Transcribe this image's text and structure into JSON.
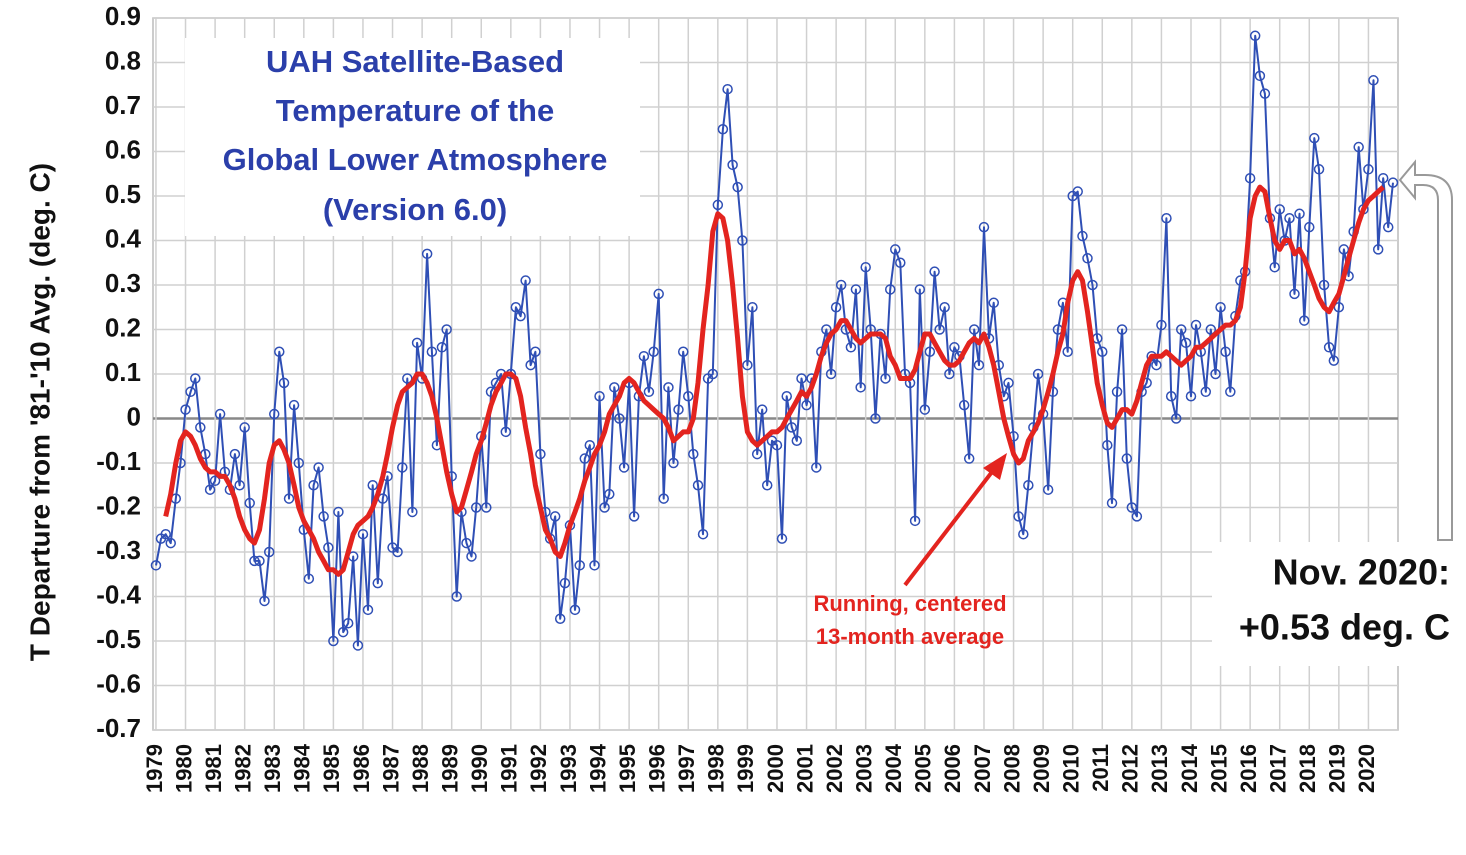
{
  "chart_data": {
    "type": "line",
    "title": [
      "UAH Satellite-Based",
      "Temperature of the",
      "Global Lower Atmosphere",
      "(Version 6.0)"
    ],
    "y_label": "T Departure from '81-'10 Avg. (deg. C)",
    "annotation": [
      "Running, centered",
      "13-month average"
    ],
    "callout": [
      "Nov. 2020:",
      "+0.53 deg. C"
    ],
    "ylim": [
      -0.7,
      0.9
    ],
    "yticks": [
      -0.7,
      -0.6,
      -0.5,
      -0.4,
      -0.3,
      -0.2,
      -0.1,
      0,
      0.1,
      0.2,
      0.3,
      0.4,
      0.5,
      0.6,
      0.7,
      0.8,
      0.9
    ],
    "xlim": [
      1978.9,
      2021.0
    ],
    "xticks": [
      1979,
      1980,
      1981,
      1982,
      1983,
      1984,
      1985,
      1986,
      1987,
      1988,
      1989,
      1990,
      1991,
      1992,
      1993,
      1994,
      1995,
      1996,
      1997,
      1998,
      1999,
      2000,
      2001,
      2002,
      2003,
      2004,
      2005,
      2006,
      2007,
      2008,
      2009,
      2010,
      2011,
      2012,
      2013,
      2014,
      2015,
      2016,
      2017,
      2018,
      2019,
      2020
    ],
    "grid": true,
    "x": [
      1979,
      1979.17,
      1979.33,
      1979.5,
      1979.67,
      1979.83,
      1980,
      1980.17,
      1980.33,
      1980.5,
      1980.67,
      1980.83,
      1981,
      1981.17,
      1981.33,
      1981.5,
      1981.67,
      1981.83,
      1982,
      1982.17,
      1982.33,
      1982.5,
      1982.67,
      1982.83,
      1983,
      1983.17,
      1983.33,
      1983.5,
      1983.67,
      1983.83,
      1984,
      1984.17,
      1984.33,
      1984.5,
      1984.67,
      1984.83,
      1985,
      1985.17,
      1985.33,
      1985.5,
      1985.67,
      1985.83,
      1986,
      1986.17,
      1986.33,
      1986.5,
      1986.67,
      1986.83,
      1987,
      1987.17,
      1987.33,
      1987.5,
      1987.67,
      1987.83,
      1988,
      1988.17,
      1988.33,
      1988.5,
      1988.67,
      1988.83,
      1989,
      1989.17,
      1989.33,
      1989.5,
      1989.67,
      1989.83,
      1990,
      1990.17,
      1990.33,
      1990.5,
      1990.67,
      1990.83,
      1991,
      1991.17,
      1991.33,
      1991.5,
      1991.67,
      1991.83,
      1992,
      1992.17,
      1992.33,
      1992.5,
      1992.67,
      1992.83,
      1993,
      1993.17,
      1993.33,
      1993.5,
      1993.67,
      1993.83,
      1994,
      1994.17,
      1994.33,
      1994.5,
      1994.67,
      1994.83,
      1995,
      1995.17,
      1995.33,
      1995.5,
      1995.67,
      1995.83,
      1996,
      1996.17,
      1996.33,
      1996.5,
      1996.67,
      1996.83,
      1997,
      1997.17,
      1997.33,
      1997.5,
      1997.67,
      1997.83,
      1998,
      1998.17,
      1998.33,
      1998.5,
      1998.67,
      1998.83,
      1999,
      1999.17,
      1999.33,
      1999.5,
      1999.67,
      1999.83,
      2000,
      2000.17,
      2000.33,
      2000.5,
      2000.67,
      2000.83,
      2001,
      2001.17,
      2001.33,
      2001.5,
      2001.67,
      2001.83,
      2002,
      2002.17,
      2002.33,
      2002.5,
      2002.67,
      2002.83,
      2003,
      2003.17,
      2003.33,
      2003.5,
      2003.67,
      2003.83,
      2004,
      2004.17,
      2004.33,
      2004.5,
      2004.67,
      2004.83,
      2005,
      2005.17,
      2005.33,
      2005.5,
      2005.67,
      2005.83,
      2006,
      2006.17,
      2006.33,
      2006.5,
      2006.67,
      2006.83,
      2007,
      2007.17,
      2007.33,
      2007.5,
      2007.67,
      2007.83,
      2008,
      2008.17,
      2008.33,
      2008.5,
      2008.67,
      2008.83,
      2009,
      2009.17,
      2009.33,
      2009.5,
      2009.67,
      2009.83,
      2010,
      2010.17,
      2010.33,
      2010.5,
      2010.67,
      2010.83,
      2011,
      2011.17,
      2011.33,
      2011.5,
      2011.67,
      2011.83,
      2012,
      2012.17,
      2012.33,
      2012.5,
      2012.67,
      2012.83,
      2013,
      2013.17,
      2013.33,
      2013.5,
      2013.67,
      2013.83,
      2014,
      2014.17,
      2014.33,
      2014.5,
      2014.67,
      2014.83,
      2015,
      2015.17,
      2015.33,
      2015.5,
      2015.67,
      2015.83,
      2016,
      2016.17,
      2016.33,
      2016.5,
      2016.67,
      2016.83,
      2017,
      2017.17,
      2017.33,
      2017.5,
      2017.67,
      2017.83,
      2018,
      2018.17,
      2018.33,
      2018.5,
      2018.67,
      2018.83,
      2019,
      2019.17,
      2019.33,
      2019.5,
      2019.67,
      2019.83,
      2020,
      2020.17,
      2020.33,
      2020.5,
      2020.67,
      2020.83
    ],
    "series": [
      {
        "color": "#2f4fb5",
        "markers": true,
        "width": 2,
        "values": [
          -0.33,
          -0.27,
          -0.26,
          -0.28,
          -0.18,
          -0.1,
          0.02,
          0.06,
          0.09,
          -0.02,
          -0.08,
          -0.16,
          -0.14,
          0.01,
          -0.12,
          -0.16,
          -0.08,
          -0.15,
          -0.02,
          -0.19,
          -0.32,
          -0.32,
          -0.41,
          -0.3,
          0.01,
          0.15,
          0.08,
          -0.18,
          0.03,
          -0.1,
          -0.25,
          -0.36,
          -0.15,
          -0.11,
          -0.22,
          -0.29,
          -0.5,
          -0.21,
          -0.48,
          -0.46,
          -0.31,
          -0.51,
          -0.26,
          -0.43,
          -0.15,
          -0.37,
          -0.18,
          -0.13,
          -0.29,
          -0.3,
          -0.11,
          0.09,
          -0.21,
          0.17,
          0.09,
          0.37,
          0.15,
          -0.06,
          0.16,
          0.2,
          -0.13,
          -0.4,
          -0.21,
          -0.28,
          -0.31,
          -0.2,
          -0.04,
          -0.2,
          0.06,
          0.08,
          0.1,
          -0.03,
          0.1,
          0.25,
          0.23,
          0.31,
          0.12,
          0.15,
          -0.08,
          -0.21,
          -0.27,
          -0.22,
          -0.45,
          -0.37,
          -0.24,
          -0.43,
          -0.33,
          -0.09,
          -0.06,
          -0.33,
          0.05,
          -0.2,
          -0.17,
          0.07,
          0.0,
          -0.11,
          0.08,
          -0.22,
          0.05,
          0.14,
          0.06,
          0.15,
          0.28,
          -0.18,
          0.07,
          -0.1,
          0.02,
          0.15,
          0.05,
          -0.08,
          -0.15,
          -0.26,
          0.09,
          0.1,
          0.48,
          0.65,
          0.74,
          0.57,
          0.52,
          0.4,
          0.12,
          0.25,
          -0.08,
          0.02,
          -0.15,
          -0.05,
          -0.06,
          -0.27,
          0.05,
          -0.02,
          -0.05,
          0.09,
          0.03,
          0.09,
          -0.11,
          0.15,
          0.2,
          0.1,
          0.25,
          0.3,
          0.2,
          0.16,
          0.29,
          0.07,
          0.34,
          0.2,
          0.0,
          0.19,
          0.09,
          0.29,
          0.38,
          0.35,
          0.1,
          0.08,
          -0.23,
          0.29,
          0.02,
          0.15,
          0.33,
          0.2,
          0.25,
          0.1,
          0.16,
          0.14,
          0.03,
          -0.09,
          0.2,
          0.12,
          0.43,
          0.18,
          0.26,
          0.12,
          0.05,
          0.08,
          -0.04,
          -0.22,
          -0.26,
          -0.15,
          -0.02,
          0.1,
          0.01,
          -0.16,
          0.06,
          0.2,
          0.26,
          0.15,
          0.5,
          0.51,
          0.41,
          0.36,
          0.3,
          0.18,
          0.15,
          -0.06,
          -0.19,
          0.06,
          0.2,
          -0.09,
          -0.2,
          -0.22,
          0.06,
          0.08,
          0.14,
          0.12,
          0.21,
          0.45,
          0.05,
          0.0,
          0.2,
          0.17,
          0.05,
          0.21,
          0.15,
          0.06,
          0.2,
          0.1,
          0.25,
          0.15,
          0.06,
          0.23,
          0.31,
          0.33,
          0.54,
          0.86,
          0.77,
          0.73,
          0.45,
          0.34,
          0.47,
          0.4,
          0.45,
          0.28,
          0.46,
          0.22,
          0.43,
          0.63,
          0.56,
          0.3,
          0.16,
          0.13,
          0.25,
          0.38,
          0.32,
          0.42,
          0.61,
          0.47,
          0.56,
          0.76,
          0.38,
          0.54,
          0.43,
          0.53
        ]
      },
      {
        "color": "#e3241f",
        "markers": false,
        "width": 5,
        "values": [
          null,
          null,
          -0.22,
          -0.17,
          -0.1,
          -0.05,
          -0.03,
          -0.04,
          -0.06,
          -0.09,
          -0.11,
          -0.12,
          -0.12,
          -0.13,
          -0.13,
          -0.15,
          -0.18,
          -0.22,
          -0.25,
          -0.27,
          -0.28,
          -0.25,
          -0.18,
          -0.1,
          -0.06,
          -0.05,
          -0.07,
          -0.1,
          -0.15,
          -0.2,
          -0.23,
          -0.25,
          -0.27,
          -0.3,
          -0.32,
          -0.34,
          -0.34,
          -0.35,
          -0.34,
          -0.3,
          -0.26,
          -0.24,
          -0.23,
          -0.22,
          -0.2,
          -0.17,
          -0.13,
          -0.08,
          -0.02,
          0.03,
          0.06,
          0.07,
          0.08,
          0.1,
          0.1,
          0.08,
          0.05,
          0.0,
          -0.06,
          -0.12,
          -0.17,
          -0.21,
          -0.2,
          -0.16,
          -0.12,
          -0.08,
          -0.05,
          -0.01,
          0.03,
          0.06,
          0.08,
          0.1,
          0.1,
          0.09,
          0.05,
          -0.02,
          -0.08,
          -0.15,
          -0.2,
          -0.25,
          -0.27,
          -0.3,
          -0.31,
          -0.28,
          -0.24,
          -0.21,
          -0.18,
          -0.14,
          -0.11,
          -0.08,
          -0.06,
          -0.03,
          0.01,
          0.03,
          0.05,
          0.08,
          0.09,
          0.08,
          0.06,
          0.04,
          0.03,
          0.02,
          0.01,
          0.0,
          -0.02,
          -0.05,
          -0.04,
          -0.03,
          -0.03,
          0.0,
          0.08,
          0.2,
          0.3,
          0.42,
          0.46,
          0.45,
          0.4,
          0.3,
          0.18,
          0.05,
          -0.03,
          -0.05,
          -0.06,
          -0.05,
          -0.04,
          -0.03,
          -0.03,
          -0.02,
          0.0,
          0.02,
          0.04,
          0.06,
          0.05,
          0.07,
          0.1,
          0.14,
          0.17,
          0.19,
          0.2,
          0.22,
          0.22,
          0.2,
          0.18,
          0.17,
          0.18,
          0.19,
          0.19,
          0.19,
          0.18,
          0.14,
          0.12,
          0.09,
          0.09,
          0.09,
          0.11,
          0.15,
          0.19,
          0.19,
          0.17,
          0.15,
          0.13,
          0.12,
          0.12,
          0.13,
          0.15,
          0.17,
          0.18,
          0.17,
          0.19,
          0.16,
          0.12,
          0.06,
          0.0,
          -0.04,
          -0.08,
          -0.1,
          -0.09,
          -0.05,
          -0.03,
          -0.01,
          0.02,
          0.06,
          0.1,
          0.15,
          0.19,
          0.26,
          0.31,
          0.33,
          0.31,
          0.24,
          0.16,
          0.08,
          0.03,
          -0.01,
          -0.02,
          0.0,
          0.02,
          0.02,
          0.01,
          0.04,
          0.08,
          0.12,
          0.14,
          0.14,
          0.14,
          0.15,
          0.14,
          0.13,
          0.12,
          0.13,
          0.14,
          0.16,
          0.16,
          0.17,
          0.18,
          0.19,
          0.2,
          0.21,
          0.21,
          0.22,
          0.25,
          0.33,
          0.45,
          0.5,
          0.52,
          0.51,
          0.45,
          0.4,
          0.38,
          0.4,
          0.4,
          0.37,
          0.38,
          0.36,
          0.33,
          0.3,
          0.27,
          0.25,
          0.24,
          0.26,
          0.28,
          0.32,
          0.36,
          0.4,
          0.44,
          0.47,
          0.49,
          0.5,
          0.51,
          0.52,
          null,
          null
        ]
      }
    ]
  }
}
